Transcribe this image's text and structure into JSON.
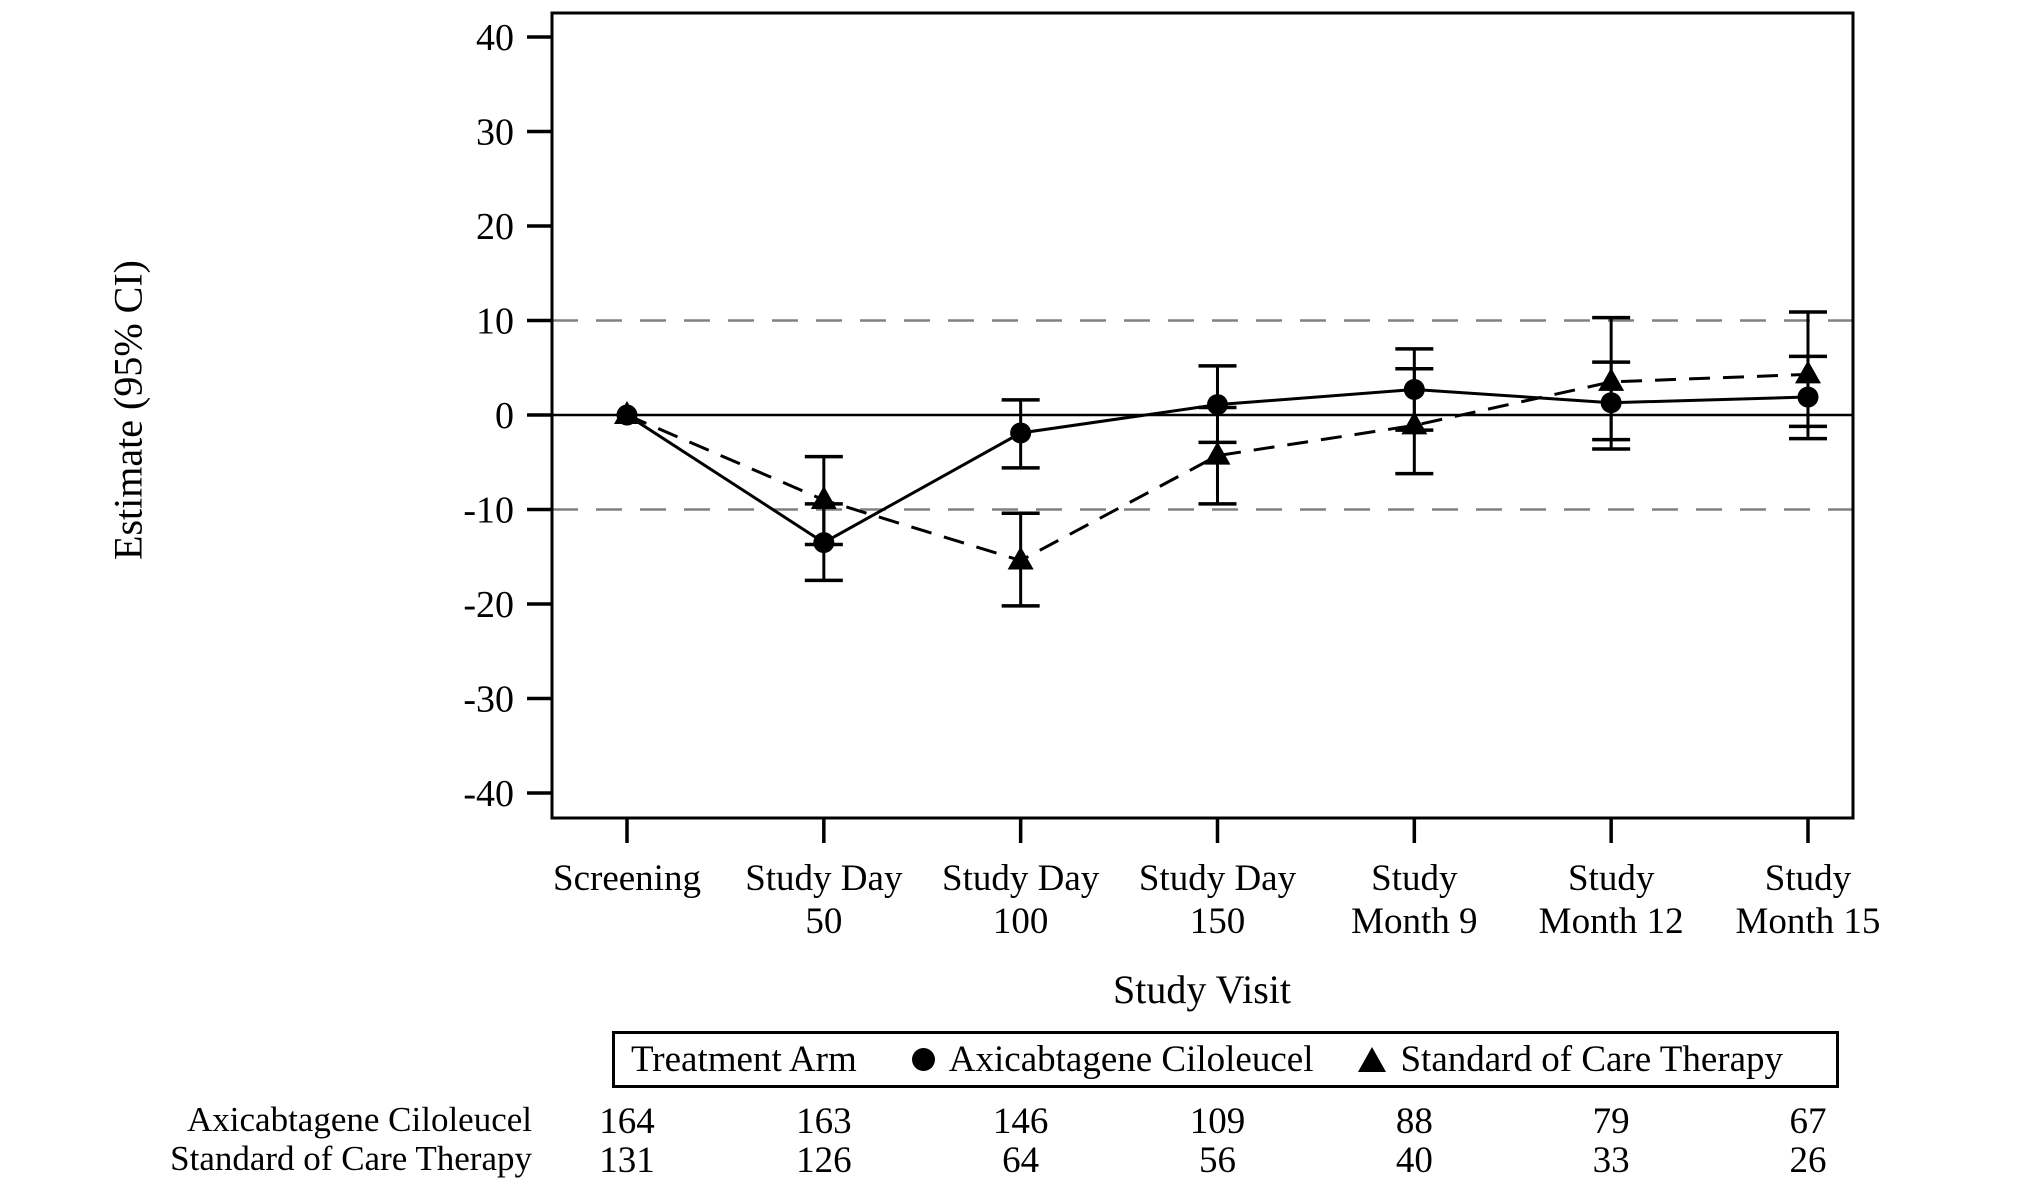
{
  "figure": {
    "background": "#ffffff",
    "axis_color": "#000000",
    "series_color": "#000000",
    "reference_line_color": "#808080"
  },
  "chart_data": {
    "type": "line",
    "title": "",
    "xlabel": "Study Visit",
    "ylabel": "Estimate (95% CI)",
    "ylim": [
      -40,
      40
    ],
    "grid": false,
    "y_ticks": [
      40,
      30,
      20,
      10,
      0,
      -10,
      -20,
      -30,
      -40
    ],
    "reference_lines": [
      {
        "y": 10,
        "style": "dashed"
      },
      {
        "y": 0,
        "style": "solid"
      },
      {
        "y": -10,
        "style": "dashed"
      }
    ],
    "categories": [
      [
        "Screening"
      ],
      [
        "Study Day",
        "50"
      ],
      [
        "Study Day",
        "100"
      ],
      [
        "Study Day",
        "150"
      ],
      [
        "Study",
        "Month 9"
      ],
      [
        "Study",
        "Month 12"
      ],
      [
        "Study",
        "Month 15"
      ]
    ],
    "legend": {
      "title": "Treatment Arm",
      "position": "bottom"
    },
    "series": [
      {
        "name": "Axicabtagene Ciloleucel",
        "marker": "circle",
        "line_style": "solid",
        "values": [
          0,
          -13.5,
          -1.9,
          1.1,
          2.7,
          1.3,
          1.9
        ],
        "ci_lower": [
          null,
          -17.5,
          -5.6,
          -2.9,
          -1.6,
          -2.6,
          -2.5
        ],
        "ci_upper": [
          null,
          -9.4,
          1.6,
          5.2,
          7.0,
          5.6,
          6.2
        ]
      },
      {
        "name": "Standard of Care Therapy",
        "marker": "triangle",
        "line_style": "dashed",
        "values": [
          0,
          -9.0,
          -15.4,
          -4.3,
          -1.1,
          3.5,
          4.3
        ],
        "ci_lower": [
          null,
          -13.7,
          -20.2,
          -9.4,
          -6.2,
          -3.6,
          -1.2
        ],
        "ci_upper": [
          null,
          -4.4,
          -10.4,
          0.8,
          4.9,
          10.3,
          10.9
        ]
      }
    ],
    "at_risk_table": {
      "rows": [
        {
          "label": "Axicabtagene Ciloleucel",
          "counts": [
            164,
            163,
            146,
            109,
            88,
            79,
            67
          ]
        },
        {
          "label": "Standard of Care Therapy",
          "counts": [
            131,
            126,
            64,
            56,
            40,
            33,
            26
          ]
        }
      ]
    }
  }
}
